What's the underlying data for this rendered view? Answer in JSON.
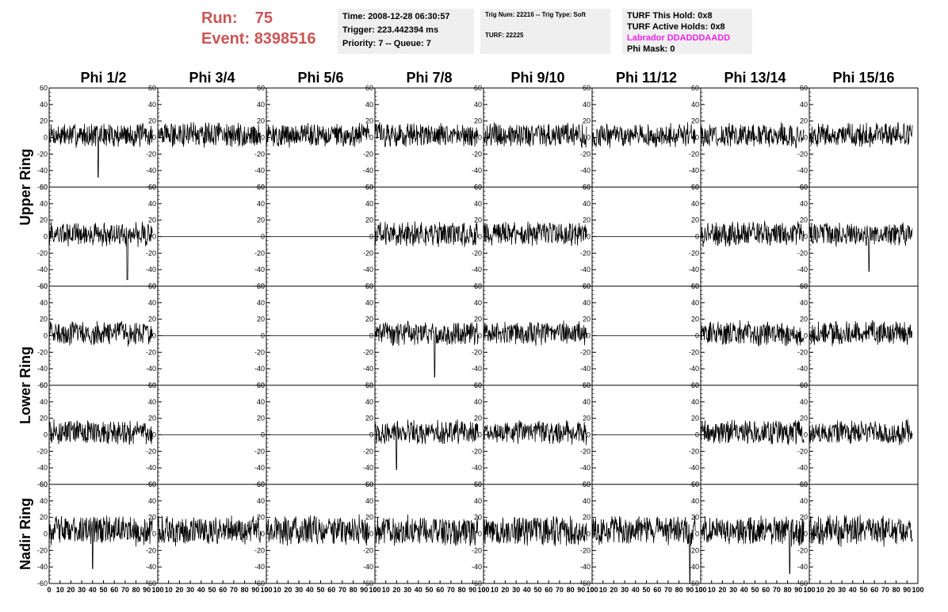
{
  "run": {
    "run_label": "Run:",
    "run_value": "75",
    "event_label": "Event:",
    "event_value": "8398516"
  },
  "info_time": {
    "time": "Time: 2008-12-28 06:30:57",
    "trigger": "Trigger: 223.442394 ms",
    "priority": "Priority: 7 -- Queue: 7"
  },
  "info_trig": {
    "trig": "Trig Num: 22216 -- Trig Type: Soft",
    "turf": "TURF: 22225"
  },
  "info_turf": {
    "hold": "TURF This Hold: 0x8",
    "active": "TURF Active Holds: 0x8",
    "labrador": "Labrador DDADDDAADD",
    "phimask": "Phi Mask: 0",
    "labrador_color": "#ee22ee"
  },
  "chart_data": {
    "type": "line",
    "title": "",
    "columns": [
      "Phi 1/2",
      "Phi 3/4",
      "Phi 5/6",
      "Phi 7/8",
      "Phi 9/10",
      "Phi 11/12",
      "Phi 13/14",
      "Phi 15/16"
    ],
    "rows": [
      "Upper Ring",
      "Lower Ring",
      "Nadir Ring"
    ],
    "ylim": [
      -60,
      60
    ],
    "xlim": [
      0,
      100
    ],
    "y_ticks": [
      -60,
      -40,
      -20,
      0,
      20,
      40,
      60
    ],
    "x_ticks": [
      0,
      10,
      20,
      30,
      40,
      50,
      60,
      70,
      80,
      90,
      100
    ],
    "flat_panels": [
      [
        1,
        1
      ],
      [
        1,
        2
      ],
      [
        1,
        5
      ],
      [
        2,
        1
      ],
      [
        2,
        2
      ],
      [
        2,
        5
      ],
      [
        3,
        1
      ],
      [
        3,
        2
      ],
      [
        3,
        5
      ]
    ],
    "spikes": [
      [
        0,
        0,
        45,
        -48
      ],
      [
        1,
        0,
        72,
        -52
      ],
      [
        2,
        3,
        55,
        -50
      ],
      [
        3,
        3,
        20,
        -42
      ],
      [
        4,
        0,
        40,
        -42
      ],
      [
        4,
        5,
        90,
        -58
      ],
      [
        4,
        6,
        82,
        -48
      ],
      [
        1,
        7,
        55,
        -42
      ]
    ]
  }
}
